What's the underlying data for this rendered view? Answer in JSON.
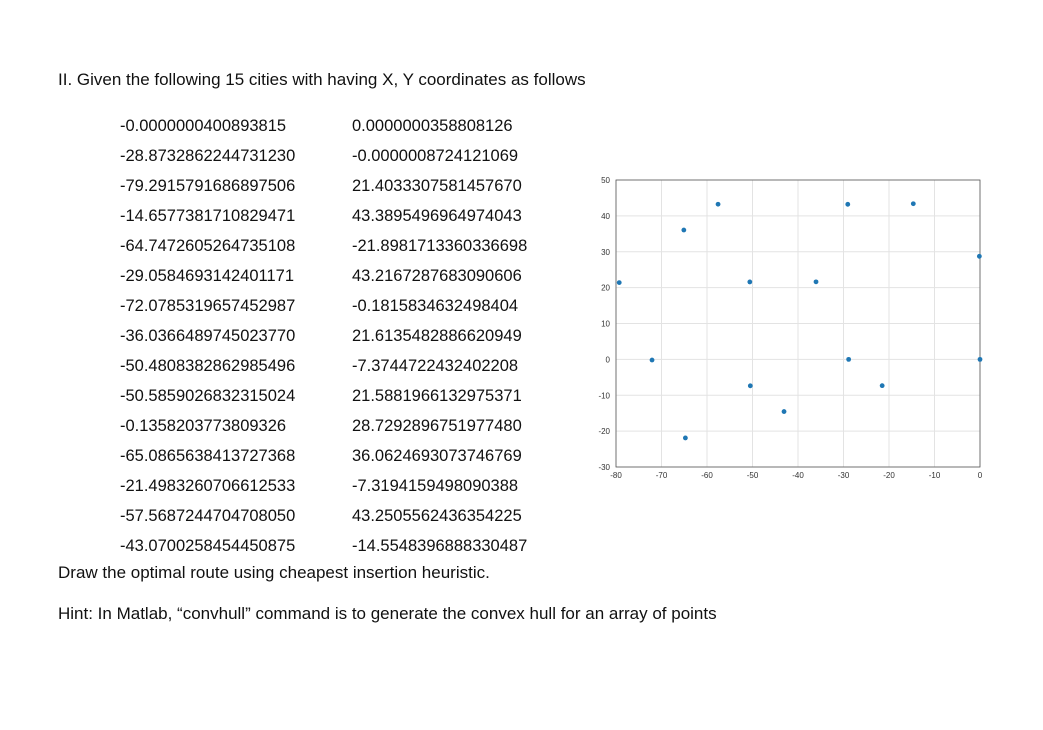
{
  "document": {
    "heading": "II. Given the following 15 cities with having X, Y coordinates as follows",
    "cities": [
      {
        "x": "-0.0000000400893815",
        "y": "0.0000000358808126"
      },
      {
        "x": "-28.8732862244731230",
        "y": "-0.0000008724121069"
      },
      {
        "x": "-79.2915791686897506",
        "y": "21.4033307581457670"
      },
      {
        "x": "-14.6577381710829471",
        "y": "43.3895496964974043"
      },
      {
        "x": "-64.7472605264735108",
        "y": "-21.8981713360336698"
      },
      {
        "x": "-29.0584693142401171",
        "y": "43.2167287683090606"
      },
      {
        "x": "-72.0785319657452987",
        "y": "-0.1815834632498404"
      },
      {
        "x": "-36.0366489745023770",
        "y": "21.6135482886620949"
      },
      {
        "x": "-50.4808382862985496",
        "y": "-7.3744722432402208"
      },
      {
        "x": "-50.5859026832315024",
        "y": "21.5881966132975371"
      },
      {
        "x": "-0.1358203773809326",
        "y": "28.7292896751977480"
      },
      {
        "x": "-65.0865638413727368",
        "y": "36.0624693073746769"
      },
      {
        "x": "-21.4983260706612533",
        "y": "-7.3194159498090388"
      },
      {
        "x": "-57.5687244704708050",
        "y": "43.2505562436354225"
      },
      {
        "x": "-43.0700258454450875",
        "y": "-14.5548396888330487"
      }
    ],
    "instruction": "Draw the optimal route using cheapest insertion heuristic.",
    "hint": "Hint: In Matlab, “convhull” command is to generate the convex hull for an array of points"
  },
  "chart_data": {
    "type": "scatter",
    "title": "",
    "xlabel": "",
    "ylabel": "",
    "xlim": [
      -80,
      0
    ],
    "ylim": [
      -30,
      50
    ],
    "x_ticks": [
      "-80",
      "-70",
      "-60",
      "-50",
      "-40",
      "-30",
      "-20",
      "-10",
      "0"
    ],
    "y_ticks": [
      "-30",
      "-20",
      "-10",
      "0",
      "10",
      "20",
      "30",
      "40",
      "50"
    ],
    "grid": true,
    "marker_color": "#1f77b4",
    "points": [
      [
        0.0,
        0.0
      ],
      [
        -28.87,
        0.0
      ],
      [
        -79.29,
        21.4
      ],
      [
        -14.66,
        43.39
      ],
      [
        -64.75,
        -21.9
      ],
      [
        -29.06,
        43.22
      ],
      [
        -72.08,
        -0.18
      ],
      [
        -36.04,
        21.61
      ],
      [
        -50.48,
        -7.37
      ],
      [
        -50.59,
        21.59
      ],
      [
        -0.14,
        28.73
      ],
      [
        -65.09,
        36.06
      ],
      [
        -21.5,
        -7.32
      ],
      [
        -57.57,
        43.25
      ],
      [
        -43.07,
        -14.55
      ]
    ]
  }
}
